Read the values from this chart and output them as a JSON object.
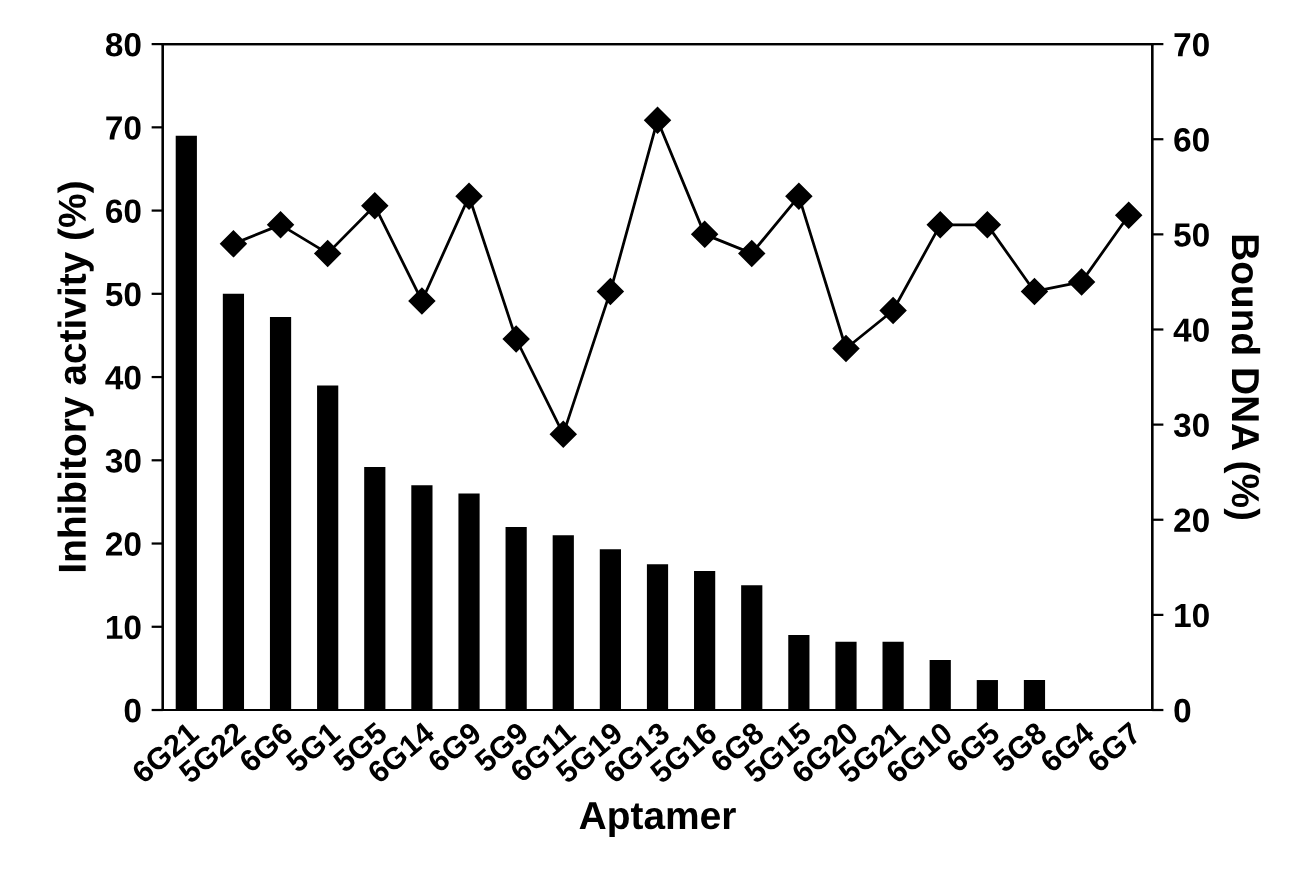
{
  "chart_data": {
    "type": "bar",
    "xlabel": "Aptamer",
    "ylabel": "Inhibitory activity (%)",
    "y2label": "Bound DNA (%)",
    "categories": [
      "6G21",
      "5G22",
      "6G6",
      "5G1",
      "5G5",
      "6G14",
      "6G9",
      "5G9",
      "6G11",
      "5G19",
      "6G13",
      "5G16",
      "6G8",
      "5G15",
      "6G20",
      "5G21",
      "6G10",
      "6G5",
      "5G8",
      "6G4",
      "6G7"
    ],
    "series": [
      {
        "color": "#000000",
        "values": [
          69,
          50,
          47.2,
          39,
          29.2,
          27,
          26,
          22,
          21,
          19.3,
          17.5,
          16.7,
          15,
          9,
          8.2,
          8.2,
          6,
          3.6,
          3.6,
          null,
          null
        ]
      },
      {
        "type": "line",
        "axis": "y2",
        "color": "#000000",
        "marker": "diamond",
        "values": [
          null,
          49,
          51,
          48,
          53,
          43,
          54,
          39,
          29,
          44,
          62,
          50,
          48,
          54,
          38,
          42,
          51,
          51,
          44,
          45,
          52
        ]
      }
    ],
    "ylim": [
      0,
      80
    ],
    "yticks": [
      0,
      10,
      20,
      30,
      40,
      50,
      60,
      70,
      80
    ],
    "y2lim": [
      0,
      70
    ],
    "y2ticks": [
      0,
      10,
      20,
      30,
      40,
      50,
      60,
      70
    ],
    "grid": false,
    "legend": false
  }
}
